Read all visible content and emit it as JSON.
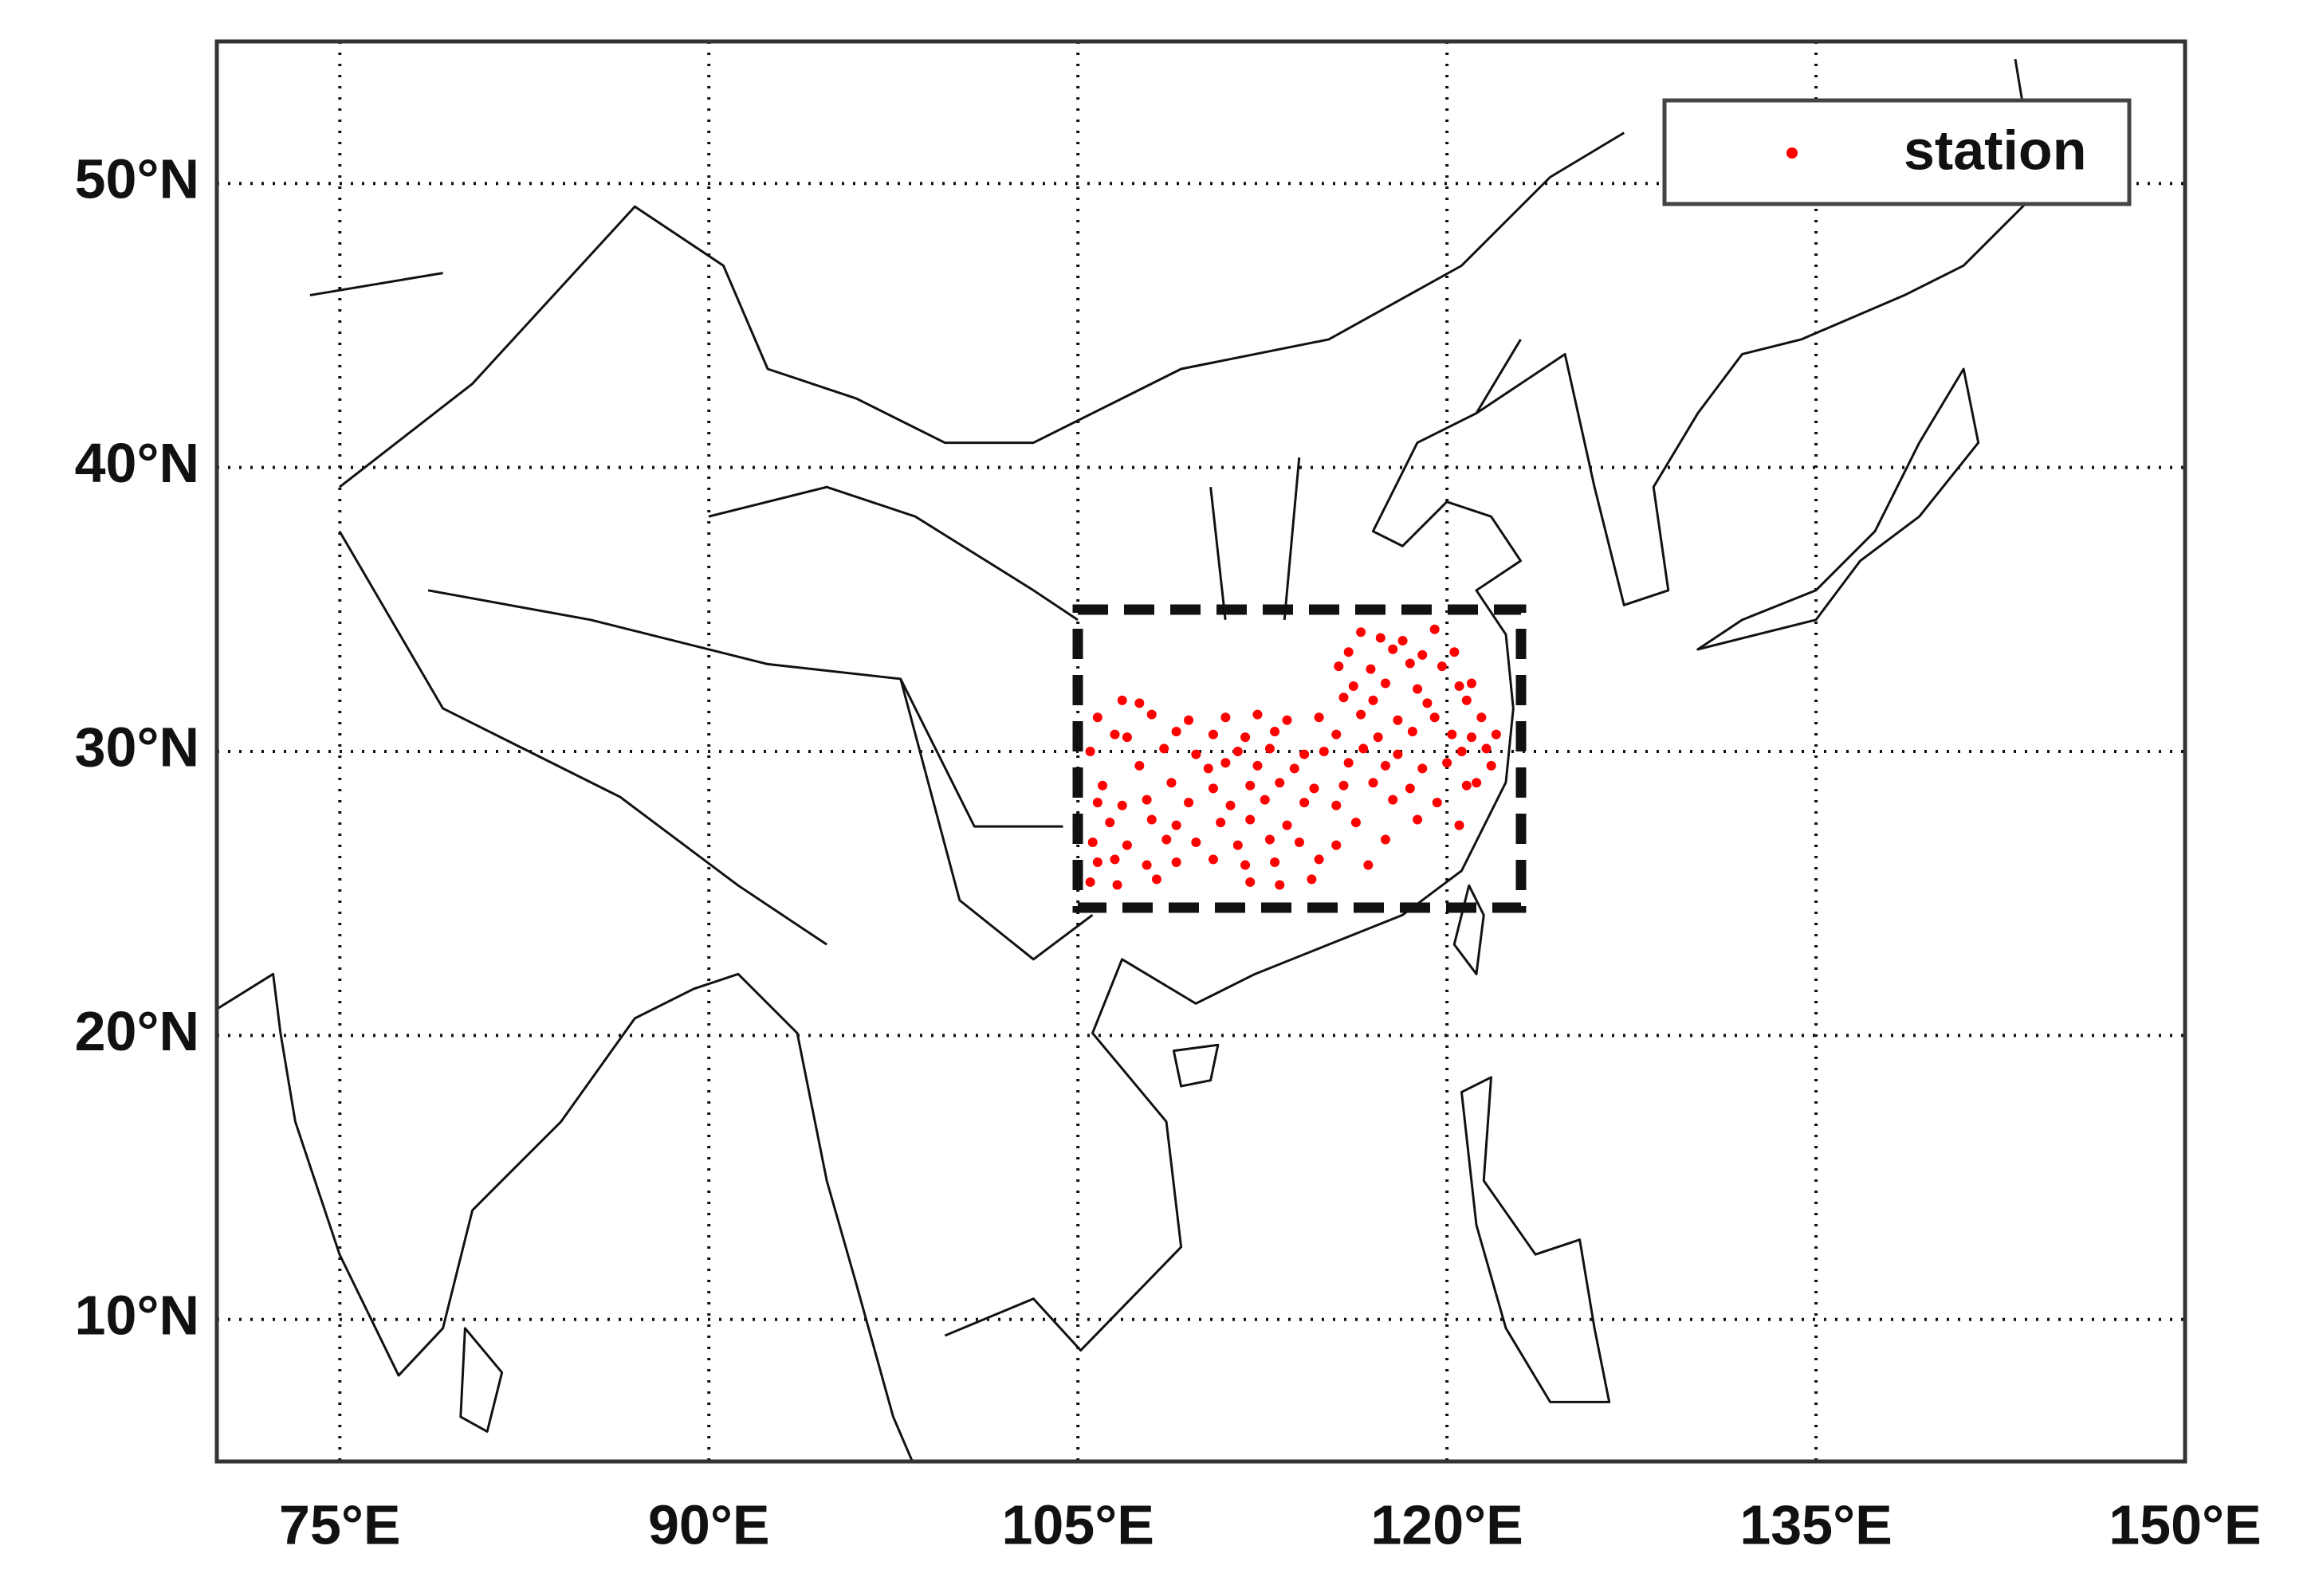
{
  "chart_data": {
    "type": "scatter",
    "x": [
      116.5,
      117.3,
      118.2,
      119.5,
      116.0,
      117.8,
      119.0,
      120.3,
      115.6,
      116.9,
      118.5,
      119.8,
      116.2,
      117.5,
      118.8,
      120.5,
      121.0,
      106.8,
      107.5,
      115.8,
      117.0,
      119.2,
      120.8,
      105.8,
      108.0,
      109.5,
      111.0,
      112.3,
      113.5,
      114.8,
      116.5,
      118.0,
      119.5,
      121.4,
      106.5,
      107.0,
      109.0,
      110.5,
      111.8,
      113.0,
      115.5,
      117.2,
      118.6,
      120.2,
      121.0,
      122.0,
      105.5,
      108.5,
      109.8,
      111.5,
      112.8,
      114.2,
      115.0,
      116.6,
      118.0,
      120.6,
      121.6,
      107.5,
      110.3,
      111.0,
      112.3,
      113.8,
      116.0,
      117.5,
      119.0,
      120.0,
      121.8,
      106.0,
      108.8,
      110.5,
      112.0,
      113.2,
      114.6,
      115.8,
      117.0,
      118.5,
      120.8,
      121.2,
      105.8,
      106.8,
      107.8,
      109.5,
      111.2,
      112.6,
      114.2,
      115.5,
      117.8,
      119.6,
      106.3,
      108.0,
      109.0,
      110.8,
      112.0,
      113.5,
      116.3,
      118.8,
      120.5,
      105.6,
      107.0,
      108.6,
      109.8,
      111.5,
      112.8,
      114.0,
      115.5,
      117.5,
      105.8,
      106.5,
      107.8,
      109.0,
      110.5,
      111.8,
      113.0,
      114.8,
      116.8,
      105.5,
      106.6,
      108.2,
      112.0,
      113.2,
      114.5
    ],
    "y": [
      34.2,
      34.0,
      33.9,
      34.3,
      33.5,
      33.6,
      33.4,
      33.5,
      33.0,
      32.9,
      33.1,
      33.0,
      32.3,
      32.4,
      32.2,
      32.3,
      32.4,
      31.8,
      31.7,
      31.9,
      31.8,
      31.7,
      31.8,
      31.2,
      31.3,
      31.1,
      31.2,
      31.3,
      31.1,
      31.2,
      31.3,
      31.1,
      31.2,
      31.2,
      30.6,
      30.5,
      30.7,
      30.6,
      30.5,
      30.7,
      30.6,
      30.5,
      30.7,
      30.6,
      30.5,
      30.6,
      30.0,
      30.1,
      29.9,
      30.0,
      30.1,
      29.9,
      30.0,
      30.1,
      29.9,
      30.0,
      30.1,
      29.5,
      29.4,
      29.6,
      29.5,
      29.4,
      29.6,
      29.5,
      29.4,
      29.6,
      29.5,
      28.8,
      28.9,
      28.7,
      28.8,
      28.9,
      28.7,
      28.8,
      28.9,
      28.7,
      28.8,
      28.9,
      28.2,
      28.1,
      28.3,
      28.2,
      28.1,
      28.3,
      28.2,
      28.1,
      28.3,
      28.2,
      27.5,
      27.6,
      27.4,
      27.5,
      27.6,
      27.4,
      27.5,
      27.6,
      27.4,
      26.8,
      26.7,
      26.9,
      26.8,
      26.7,
      26.9,
      26.8,
      26.7,
      26.9,
      26.1,
      26.2,
      26.0,
      26.1,
      26.2,
      26.0,
      26.1,
      26.2,
      26.0,
      25.4,
      25.3,
      25.5,
      25.4,
      25.3,
      25.5
    ],
    "series_name": "station",
    "color": "#ff0000",
    "xlim": [
      70,
      150
    ],
    "ylim": [
      5,
      55
    ],
    "xticks": [
      {
        "value": 75,
        "label": "75°E"
      },
      {
        "value": 90,
        "label": "90°E"
      },
      {
        "value": 105,
        "label": "105°E"
      },
      {
        "value": 120,
        "label": "120°E"
      },
      {
        "value": 135,
        "label": "135°E"
      },
      {
        "value": 150,
        "label": "150°E"
      }
    ],
    "yticks": [
      {
        "value": 10,
        "label": "10°N"
      },
      {
        "value": 20,
        "label": "20°N"
      },
      {
        "value": 30,
        "label": "30°N"
      },
      {
        "value": 40,
        "label": "40°N"
      },
      {
        "value": 50,
        "label": "50°N"
      }
    ],
    "grid": true,
    "legend": "upper right"
  }
}
